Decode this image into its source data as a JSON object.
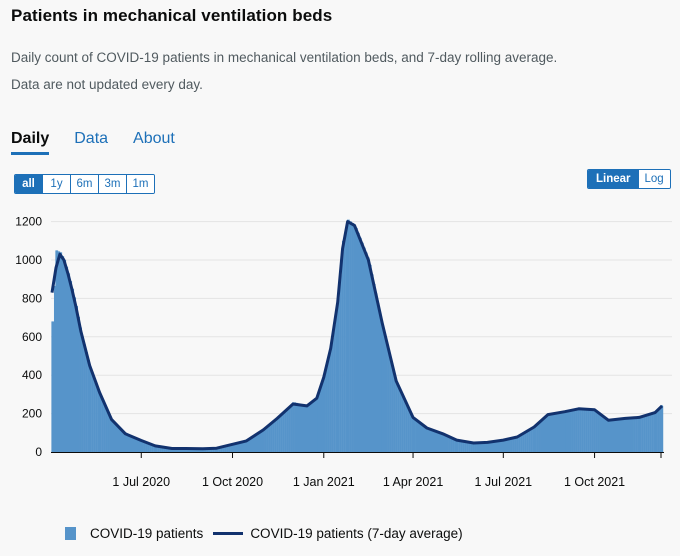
{
  "header": {
    "title": "Patients in mechanical ventilation beds",
    "description_1": "Daily count of COVID-19 patients in mechanical ventilation beds, and 7-day rolling average.",
    "description_2": "Data are not updated every day."
  },
  "tabs": [
    {
      "label": "Daily",
      "active": true
    },
    {
      "label": "Data",
      "active": false
    },
    {
      "label": "About",
      "active": false
    }
  ],
  "range_buttons": [
    {
      "label": "all",
      "active": true
    },
    {
      "label": "1y",
      "active": false
    },
    {
      "label": "6m",
      "active": false
    },
    {
      "label": "3m",
      "active": false
    },
    {
      "label": "1m",
      "active": false
    }
  ],
  "scale_buttons": [
    {
      "label": "Linear",
      "active": true
    },
    {
      "label": "Log",
      "active": false
    }
  ],
  "colors": {
    "bars": "#5694ca",
    "average_line": "#12326e",
    "accent": "#1d70b8"
  },
  "legend": {
    "bars_label": "COVID-19 patients",
    "line_label": "COVID-19 patients (7-day average)"
  },
  "chart_data": {
    "type": "bar",
    "y_ticks": [
      "0",
      "200",
      "400",
      "600",
      "800",
      "1000",
      "1200"
    ],
    "ylim": [
      0,
      1250
    ],
    "x_ticks": [
      "1 Jul 2020",
      "1 Oct 2020",
      "1 Jan 2021",
      "1 Apr 2021",
      "1 Jul 2021",
      "1 Oct 2021"
    ],
    "grid": true,
    "series": [
      {
        "name": "COVID-19 patients",
        "type": "bar",
        "x": [
          "2020-04-02",
          "2020-04-06",
          "2020-04-10",
          "2020-04-14",
          "2020-04-18",
          "2020-04-22",
          "2020-04-26",
          "2020-05-01",
          "2020-05-10",
          "2020-05-20",
          "2020-06-01",
          "2020-06-15",
          "2020-07-01",
          "2020-07-15",
          "2020-08-01",
          "2020-08-15",
          "2020-09-01",
          "2020-09-15",
          "2020-10-01",
          "2020-10-15",
          "2020-11-01",
          "2020-11-15",
          "2020-12-01",
          "2020-12-15",
          "2020-12-25",
          "2021-01-01",
          "2021-01-08",
          "2021-01-15",
          "2021-01-20",
          "2021-01-25",
          "2021-02-01",
          "2021-02-15",
          "2021-03-01",
          "2021-03-15",
          "2021-04-01",
          "2021-04-15",
          "2021-05-01",
          "2021-05-15",
          "2021-06-01",
          "2021-06-15",
          "2021-07-01",
          "2021-07-15",
          "2021-08-01",
          "2021-08-15",
          "2021-09-01",
          "2021-09-15",
          "2021-10-01",
          "2021-10-15",
          "2021-11-01",
          "2021-11-15",
          "2021-12-01",
          "2021-12-08"
        ],
        "values": [
          680,
          1050,
          1040,
          1000,
          930,
          850,
          760,
          620,
          440,
          300,
          160,
          90,
          55,
          30,
          15,
          20,
          15,
          20,
          45,
          60,
          120,
          180,
          260,
          240,
          290,
          400,
          560,
          800,
          1100,
          1210,
          1180,
          1000,
          650,
          350,
          170,
          120,
          95,
          60,
          45,
          50,
          60,
          75,
          130,
          200,
          210,
          230,
          220,
          160,
          180,
          180,
          210,
          245
        ]
      },
      {
        "name": "COVID-19 patients (7-day average)",
        "type": "line",
        "x": [
          "2020-04-02",
          "2020-04-06",
          "2020-04-10",
          "2020-04-14",
          "2020-04-18",
          "2020-04-22",
          "2020-04-26",
          "2020-05-01",
          "2020-05-10",
          "2020-05-20",
          "2020-06-01",
          "2020-06-15",
          "2020-07-01",
          "2020-07-15",
          "2020-08-01",
          "2020-08-15",
          "2020-09-01",
          "2020-09-15",
          "2020-10-01",
          "2020-10-15",
          "2020-11-01",
          "2020-11-15",
          "2020-12-01",
          "2020-12-15",
          "2020-12-25",
          "2021-01-01",
          "2021-01-08",
          "2021-01-15",
          "2021-01-20",
          "2021-01-25",
          "2021-02-01",
          "2021-02-15",
          "2021-03-01",
          "2021-03-15",
          "2021-04-01",
          "2021-04-15",
          "2021-05-01",
          "2021-05-15",
          "2021-06-01",
          "2021-06-15",
          "2021-07-01",
          "2021-07-15",
          "2021-08-01",
          "2021-08-15",
          "2021-09-01",
          "2021-09-15",
          "2021-10-01",
          "2021-10-15",
          "2021-11-01",
          "2021-11-15",
          "2021-12-01",
          "2021-12-08"
        ],
        "values": [
          830,
          960,
          1030,
          1000,
          930,
          850,
          760,
          630,
          450,
          310,
          170,
          95,
          60,
          32,
          18,
          18,
          17,
          20,
          40,
          58,
          115,
          175,
          250,
          240,
          280,
          390,
          540,
          780,
          1060,
          1200,
          1180,
          1000,
          670,
          370,
          180,
          125,
          95,
          62,
          47,
          50,
          62,
          78,
          130,
          195,
          210,
          225,
          220,
          165,
          175,
          180,
          205,
          240
        ]
      }
    ]
  }
}
